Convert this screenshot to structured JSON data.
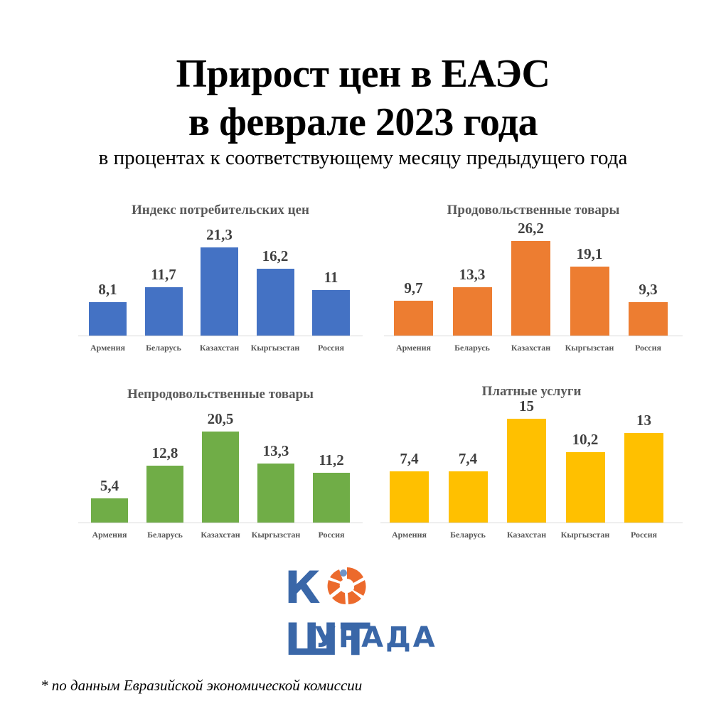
{
  "header": {
    "title_line1": "Прирост цен в ЕАЭС",
    "title_line2": "в феврале 2023 года",
    "subtitle": "в процентах к соответствующему месяцу предыдущего года"
  },
  "logo": {
    "top_left": "К",
    "top_right": "ШТ",
    "bottom": "УРАДА"
  },
  "footnote": "* по данным Евразийской экономической комиссии",
  "chart_data": [
    {
      "type": "bar",
      "title": "Индекс потребительских цен",
      "categories": [
        "Армения",
        "Беларусь",
        "Казахстан",
        "Кыргызстан",
        "Россия"
      ],
      "values": [
        8.1,
        11.7,
        21.3,
        16.2,
        11
      ],
      "labels": [
        "8,1",
        "11,7",
        "21,3",
        "16,2",
        "11"
      ],
      "color": "#4472c4",
      "xlabel": "",
      "ylabel": "%",
      "grid": false
    },
    {
      "type": "bar",
      "title": "Продовольственные товары",
      "categories": [
        "Армения",
        "Беларусь",
        "Казахстан",
        "Кыргызстан",
        "Россия"
      ],
      "values": [
        9.7,
        13.3,
        26.2,
        19.1,
        9.3
      ],
      "labels": [
        "9,7",
        "13,3",
        "26,2",
        "19,1",
        "9,3"
      ],
      "color": "#ed7d31",
      "xlabel": "",
      "ylabel": "%",
      "grid": false
    },
    {
      "type": "bar",
      "title": "Непродовольственные товары",
      "categories": [
        "Армения",
        "Беларусь",
        "Казахстан",
        "Кыргызстан",
        "Россия"
      ],
      "values": [
        5.4,
        12.8,
        20.5,
        13.3,
        11.2
      ],
      "labels": [
        "5,4",
        "12,8",
        "20,5",
        "13,3",
        "11,2"
      ],
      "color": "#70ad47",
      "xlabel": "",
      "ylabel": "%",
      "grid": false
    },
    {
      "type": "bar",
      "title": "Платные услуги",
      "categories": [
        "Армения",
        "Беларусь",
        "Казахстан",
        "Кыргызстан",
        "Россия"
      ],
      "values": [
        7.4,
        7.4,
        15,
        10.2,
        13
      ],
      "labels": [
        "7,4",
        "7,4",
        "15",
        "10,2",
        "13"
      ],
      "color": "#ffc000",
      "xlabel": "",
      "ylabel": "%",
      "grid": false
    }
  ]
}
